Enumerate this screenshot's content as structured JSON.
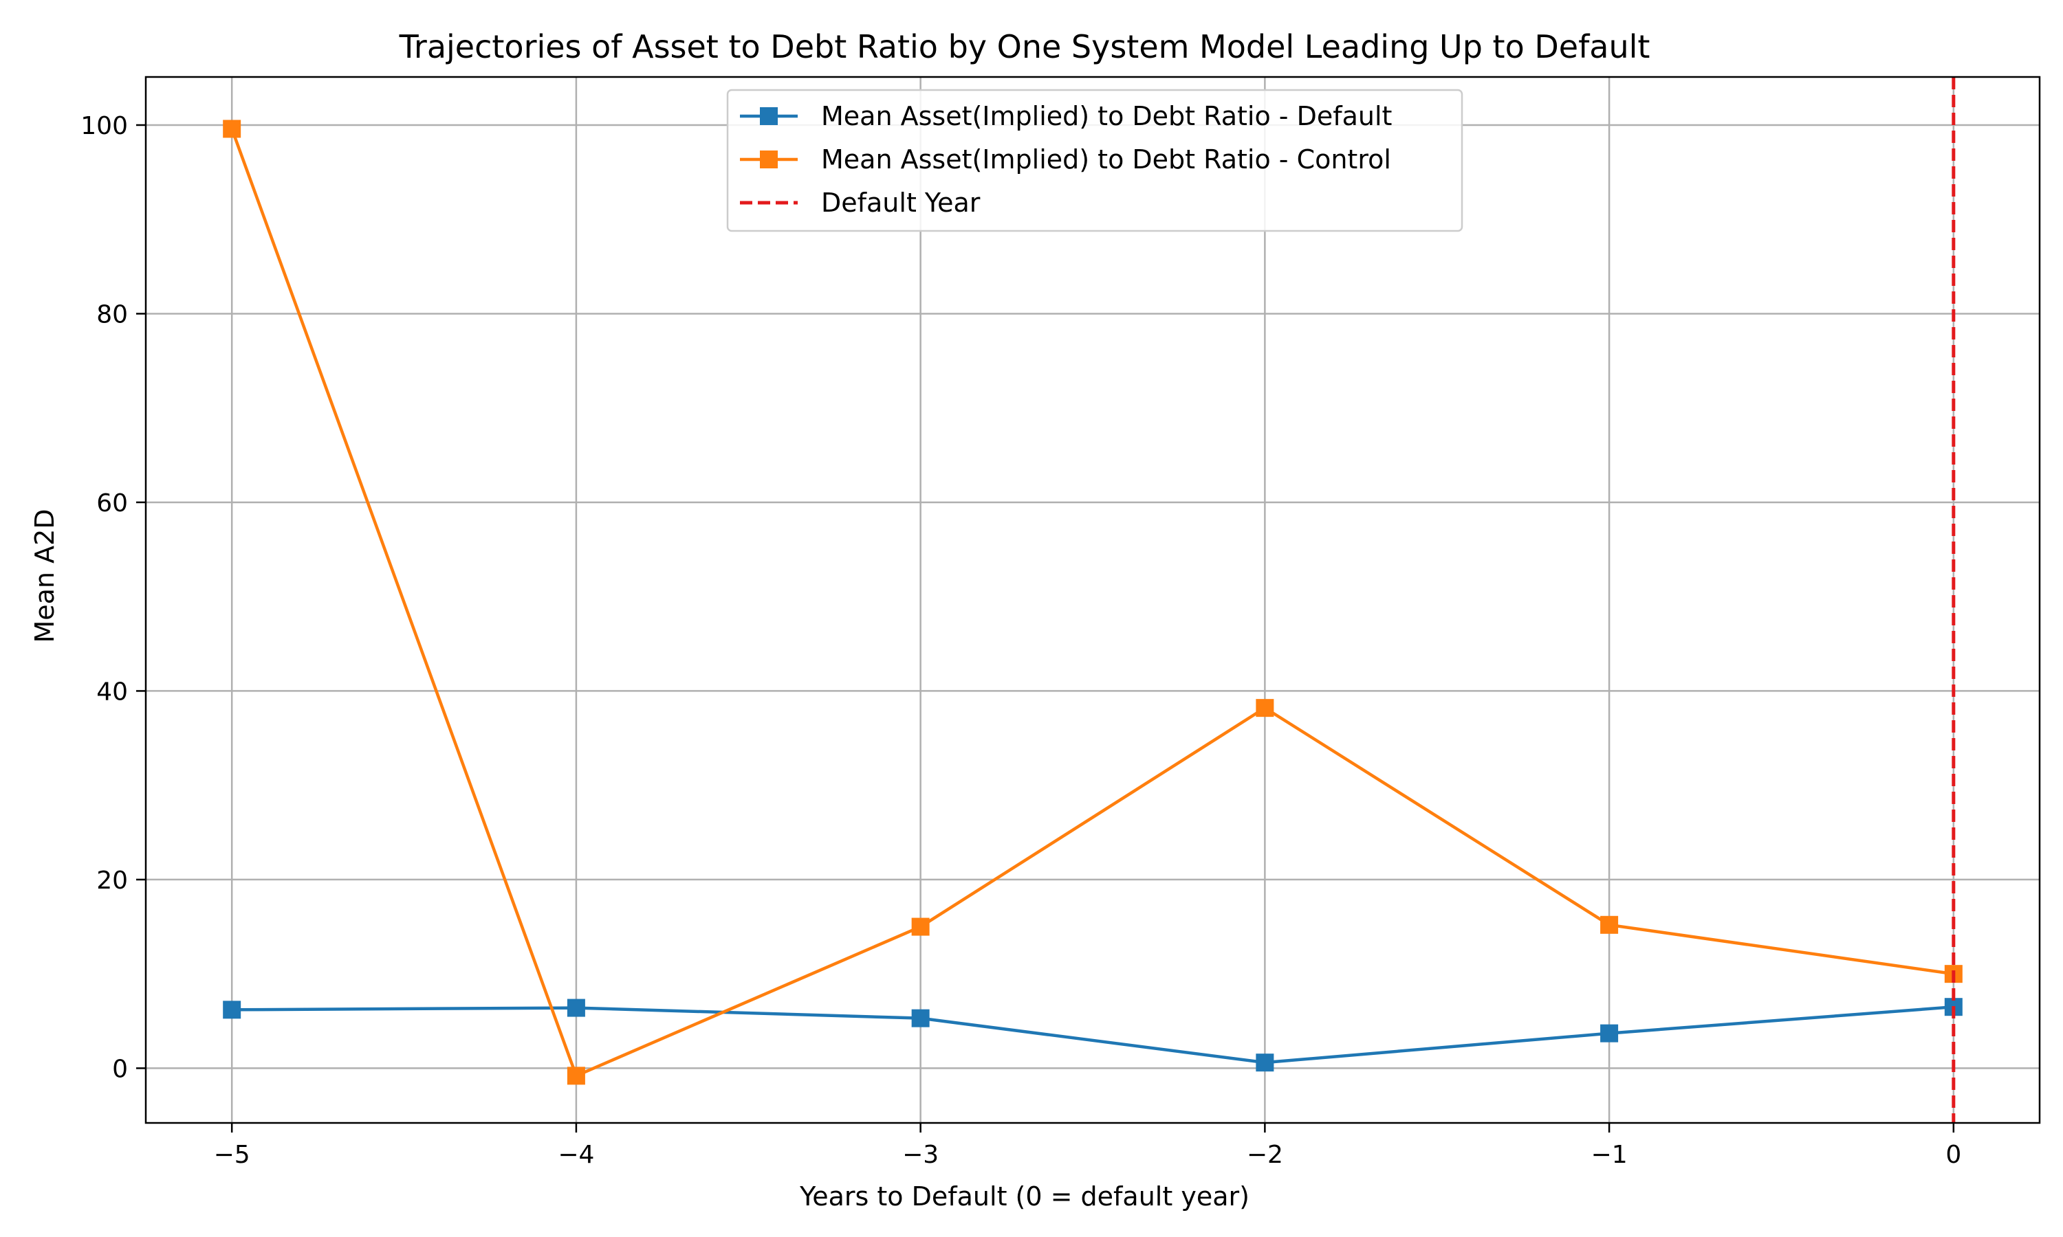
{
  "chart_data": {
    "type": "line",
    "title": "Trajectories of Asset to Debt Ratio by One System Model Leading Up to Default",
    "xlabel": "Years to Default (0 = default year)",
    "ylabel": "Mean A2D",
    "x": [
      -5,
      -4,
      -3,
      -2,
      -1,
      0
    ],
    "x_tick_labels": [
      "−5",
      "−4",
      "−3",
      "−2",
      "−1",
      "0"
    ],
    "y_ticks": [
      0,
      20,
      40,
      60,
      80,
      100
    ],
    "y_tick_labels": [
      "0",
      "20",
      "40",
      "60",
      "80",
      "100"
    ],
    "xlim": [
      -5.25,
      0.25
    ],
    "ylim": [
      -5.8,
      105.1
    ],
    "grid": true,
    "legend_position": "top-center",
    "series": [
      {
        "name": "Mean Asset(Implied) to Debt Ratio - Default",
        "color": "#1f77b4",
        "marker": "square",
        "values": [
          6.2,
          6.4,
          5.3,
          0.6,
          3.7,
          6.5
        ]
      },
      {
        "name": "Mean Asset(Implied) to Debt Ratio - Control",
        "color": "#ff7f0e",
        "marker": "square",
        "values": [
          99.6,
          -0.8,
          15.0,
          38.2,
          15.2,
          10.0
        ]
      }
    ],
    "reference_lines": [
      {
        "name": "Default Year",
        "orientation": "vertical",
        "x": 0,
        "color": "#e31a1c",
        "style": "dashed"
      }
    ]
  }
}
